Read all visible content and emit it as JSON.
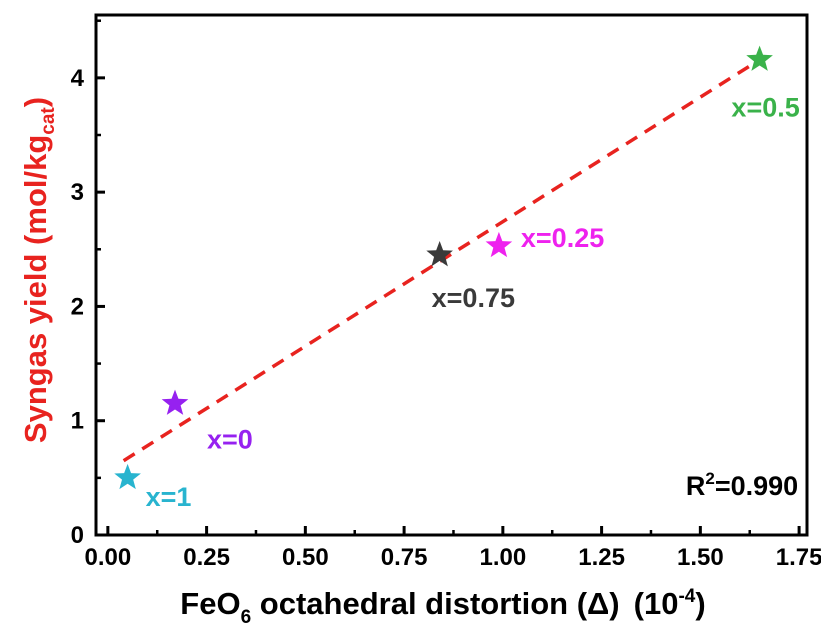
{
  "chart_data": {
    "type": "scatter",
    "title": "",
    "xlabel": {
      "main": "FeO",
      "main_sub": "6",
      "rest": " octahedral distortion (Δ)",
      "unit_base": "(10",
      "unit_sup": "-4",
      "unit_end": ")"
    },
    "ylabel": {
      "main": "Syngas yield (mol/kg",
      "sub": "cat",
      "end": ")",
      "color": "#e8231f"
    },
    "xlim": [
      -0.03,
      1.77
    ],
    "ylim": [
      0,
      4.55
    ],
    "xticks": [
      0.0,
      0.25,
      0.5,
      0.75,
      1.0,
      1.25,
      1.5,
      1.75
    ],
    "xtick_labels": [
      "0.00",
      "0.25",
      "0.50",
      "0.75",
      "1.00",
      "1.25",
      "1.50",
      "1.75"
    ],
    "yticks": [
      0,
      1,
      2,
      3,
      4
    ],
    "ytick_labels": [
      "0",
      "1",
      "2",
      "3",
      "4"
    ],
    "grid": false,
    "series": [
      {
        "label": "x=1",
        "x": 0.05,
        "y": 0.5,
        "color": "#28b4cf"
      },
      {
        "label": "x=0",
        "x": 0.17,
        "y": 1.15,
        "color": "#9621f0"
      },
      {
        "label": "x=0.75",
        "x": 0.84,
        "y": 2.45,
        "color": "#3a3a3a"
      },
      {
        "label": "x=0.25",
        "x": 0.99,
        "y": 2.53,
        "color": "#ee22ee"
      },
      {
        "label": "x=0.5",
        "x": 1.65,
        "y": 4.16,
        "color": "#3ab24a"
      }
    ],
    "fit_line": {
      "x": [
        0.04,
        1.66
      ],
      "y": [
        0.65,
        4.18
      ],
      "color": "#e8231f",
      "style": "dashed"
    },
    "annotation": {
      "base": "R",
      "sup": "2",
      "rest": "=0.990"
    }
  }
}
